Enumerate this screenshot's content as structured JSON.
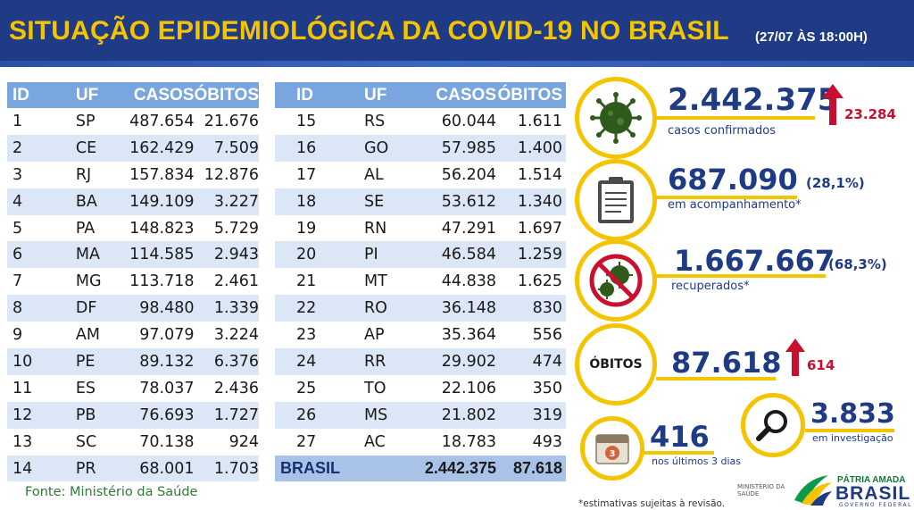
{
  "header": {
    "title": "SITUAÇÃO EPIDEMIOLÓGICA DA COVID-19 NO BRASIL",
    "subtitle": "(27/07 ÀS 18:00H)"
  },
  "table_headers": {
    "id": "ID",
    "uf": "UF",
    "casos": "CASOS",
    "obitos": "ÓBITOS"
  },
  "left_rows": [
    {
      "id": "1",
      "uf": "SP",
      "casos": "487.654",
      "obitos": "21.676"
    },
    {
      "id": "2",
      "uf": "CE",
      "casos": "162.429",
      "obitos": "7.509"
    },
    {
      "id": "3",
      "uf": "RJ",
      "casos": "157.834",
      "obitos": "12.876"
    },
    {
      "id": "4",
      "uf": "BA",
      "casos": "149.109",
      "obitos": "3.227"
    },
    {
      "id": "5",
      "uf": "PA",
      "casos": "148.823",
      "obitos": "5.729"
    },
    {
      "id": "6",
      "uf": "MA",
      "casos": "114.585",
      "obitos": "2.943"
    },
    {
      "id": "7",
      "uf": "MG",
      "casos": "113.718",
      "obitos": "2.461"
    },
    {
      "id": "8",
      "uf": "DF",
      "casos": "98.480",
      "obitos": "1.339"
    },
    {
      "id": "9",
      "uf": "AM",
      "casos": "97.079",
      "obitos": "3.224"
    },
    {
      "id": "10",
      "uf": "PE",
      "casos": "89.132",
      "obitos": "6.376"
    },
    {
      "id": "11",
      "uf": "ES",
      "casos": "78.037",
      "obitos": "2.436"
    },
    {
      "id": "12",
      "uf": "PB",
      "casos": "76.693",
      "obitos": "1.727"
    },
    {
      "id": "13",
      "uf": "SC",
      "casos": "70.138",
      "obitos": "924"
    },
    {
      "id": "14",
      "uf": "PR",
      "casos": "68.001",
      "obitos": "1.703"
    }
  ],
  "right_rows": [
    {
      "id": "15",
      "uf": "RS",
      "casos": "60.044",
      "obitos": "1.611"
    },
    {
      "id": "16",
      "uf": "GO",
      "casos": "57.985",
      "obitos": "1.400"
    },
    {
      "id": "17",
      "uf": "AL",
      "casos": "56.204",
      "obitos": "1.514"
    },
    {
      "id": "18",
      "uf": "SE",
      "casos": "53.612",
      "obitos": "1.340"
    },
    {
      "id": "19",
      "uf": "RN",
      "casos": "47.291",
      "obitos": "1.697"
    },
    {
      "id": "20",
      "uf": "PI",
      "casos": "46.584",
      "obitos": "1.259"
    },
    {
      "id": "21",
      "uf": "MT",
      "casos": "44.838",
      "obitos": "1.625"
    },
    {
      "id": "22",
      "uf": "RO",
      "casos": "36.148",
      "obitos": "830"
    },
    {
      "id": "23",
      "uf": "AP",
      "casos": "35.364",
      "obitos": "556"
    },
    {
      "id": "24",
      "uf": "RR",
      "casos": "29.902",
      "obitos": "474"
    },
    {
      "id": "25",
      "uf": "TO",
      "casos": "22.106",
      "obitos": "350"
    },
    {
      "id": "26",
      "uf": "MS",
      "casos": "21.802",
      "obitos": "319"
    },
    {
      "id": "27",
      "uf": "AC",
      "casos": "18.783",
      "obitos": "493"
    }
  ],
  "total": {
    "label": "BRASIL",
    "casos": "2.442.375",
    "obitos": "87.618"
  },
  "source": "Fonte: Ministério da Saúde",
  "stats": {
    "confirmed": {
      "value": "2.442.375",
      "label": "casos confirmados",
      "increase": "23.284"
    },
    "monitoring": {
      "value": "687.090",
      "pct": "(28,1%)",
      "label": "em acompanhamento*"
    },
    "recovered": {
      "value": "1.667.667",
      "pct": "(68,3%)",
      "label": "recuperados*"
    },
    "deaths": {
      "badge": "ÓBITOS",
      "value": "87.618",
      "increase": "614"
    },
    "investigating": {
      "value": "3.833",
      "label": "em investigação"
    },
    "last3days": {
      "value": "416",
      "label": "nos últimos 3 dias",
      "calendar_number": "3"
    }
  },
  "footnote": "*estimativas sujeitas à revisão.",
  "logos": {
    "ministerio": "MINISTÉRIO DA SAÚDE",
    "patria": "PÁTRIA AMADA",
    "brasil": "BRASIL",
    "governo": "GOVERNO FEDERAL"
  },
  "colors": {
    "navy": "#1f3b86",
    "yellow": "#f5c400",
    "header_cell": "#7aa6df",
    "stripe": "#dbe6f6",
    "red": "#c8102e",
    "green": "#2f7a3a"
  }
}
